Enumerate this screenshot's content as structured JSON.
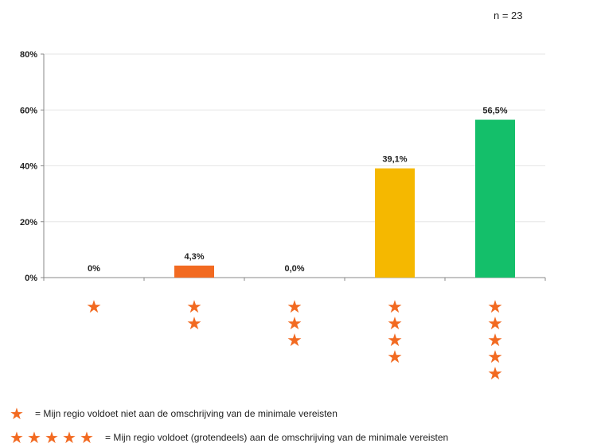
{
  "n_label": "n = 23",
  "chart_data": {
    "type": "bar",
    "categories": [
      "1 ster",
      "2 sterren",
      "3 sterren",
      "4 sterren",
      "5 sterren"
    ],
    "category_star_counts": [
      1,
      2,
      3,
      4,
      5
    ],
    "values": [
      0,
      4.3,
      0.0,
      39.1,
      56.5
    ],
    "data_labels": [
      "0%",
      "4,3%",
      "0,0%",
      "39,1%",
      "56,5%"
    ],
    "bar_colors": [
      "#f26a21",
      "#f26a21",
      "#f26a21",
      "#f5b800",
      "#14bf6a"
    ],
    "ylim": [
      0,
      80
    ],
    "yticks": [
      0,
      20,
      40,
      60,
      80
    ],
    "ytick_labels": [
      "0%",
      "20%",
      "40%",
      "60%",
      "80%"
    ],
    "title": "",
    "xlabel": "",
    "ylabel": "",
    "grid": true
  },
  "legend": {
    "star_color": "#f26a21",
    "row1": {
      "stars": 1,
      "text": "= Mijn  regio voldoet niet aan de omschrijving van de minimale  vereisten"
    },
    "row2": {
      "stars": 5,
      "text": "= Mijn  regio voldoet (grotendeels) aan de omschrijving van de minimale  vereisten"
    }
  }
}
